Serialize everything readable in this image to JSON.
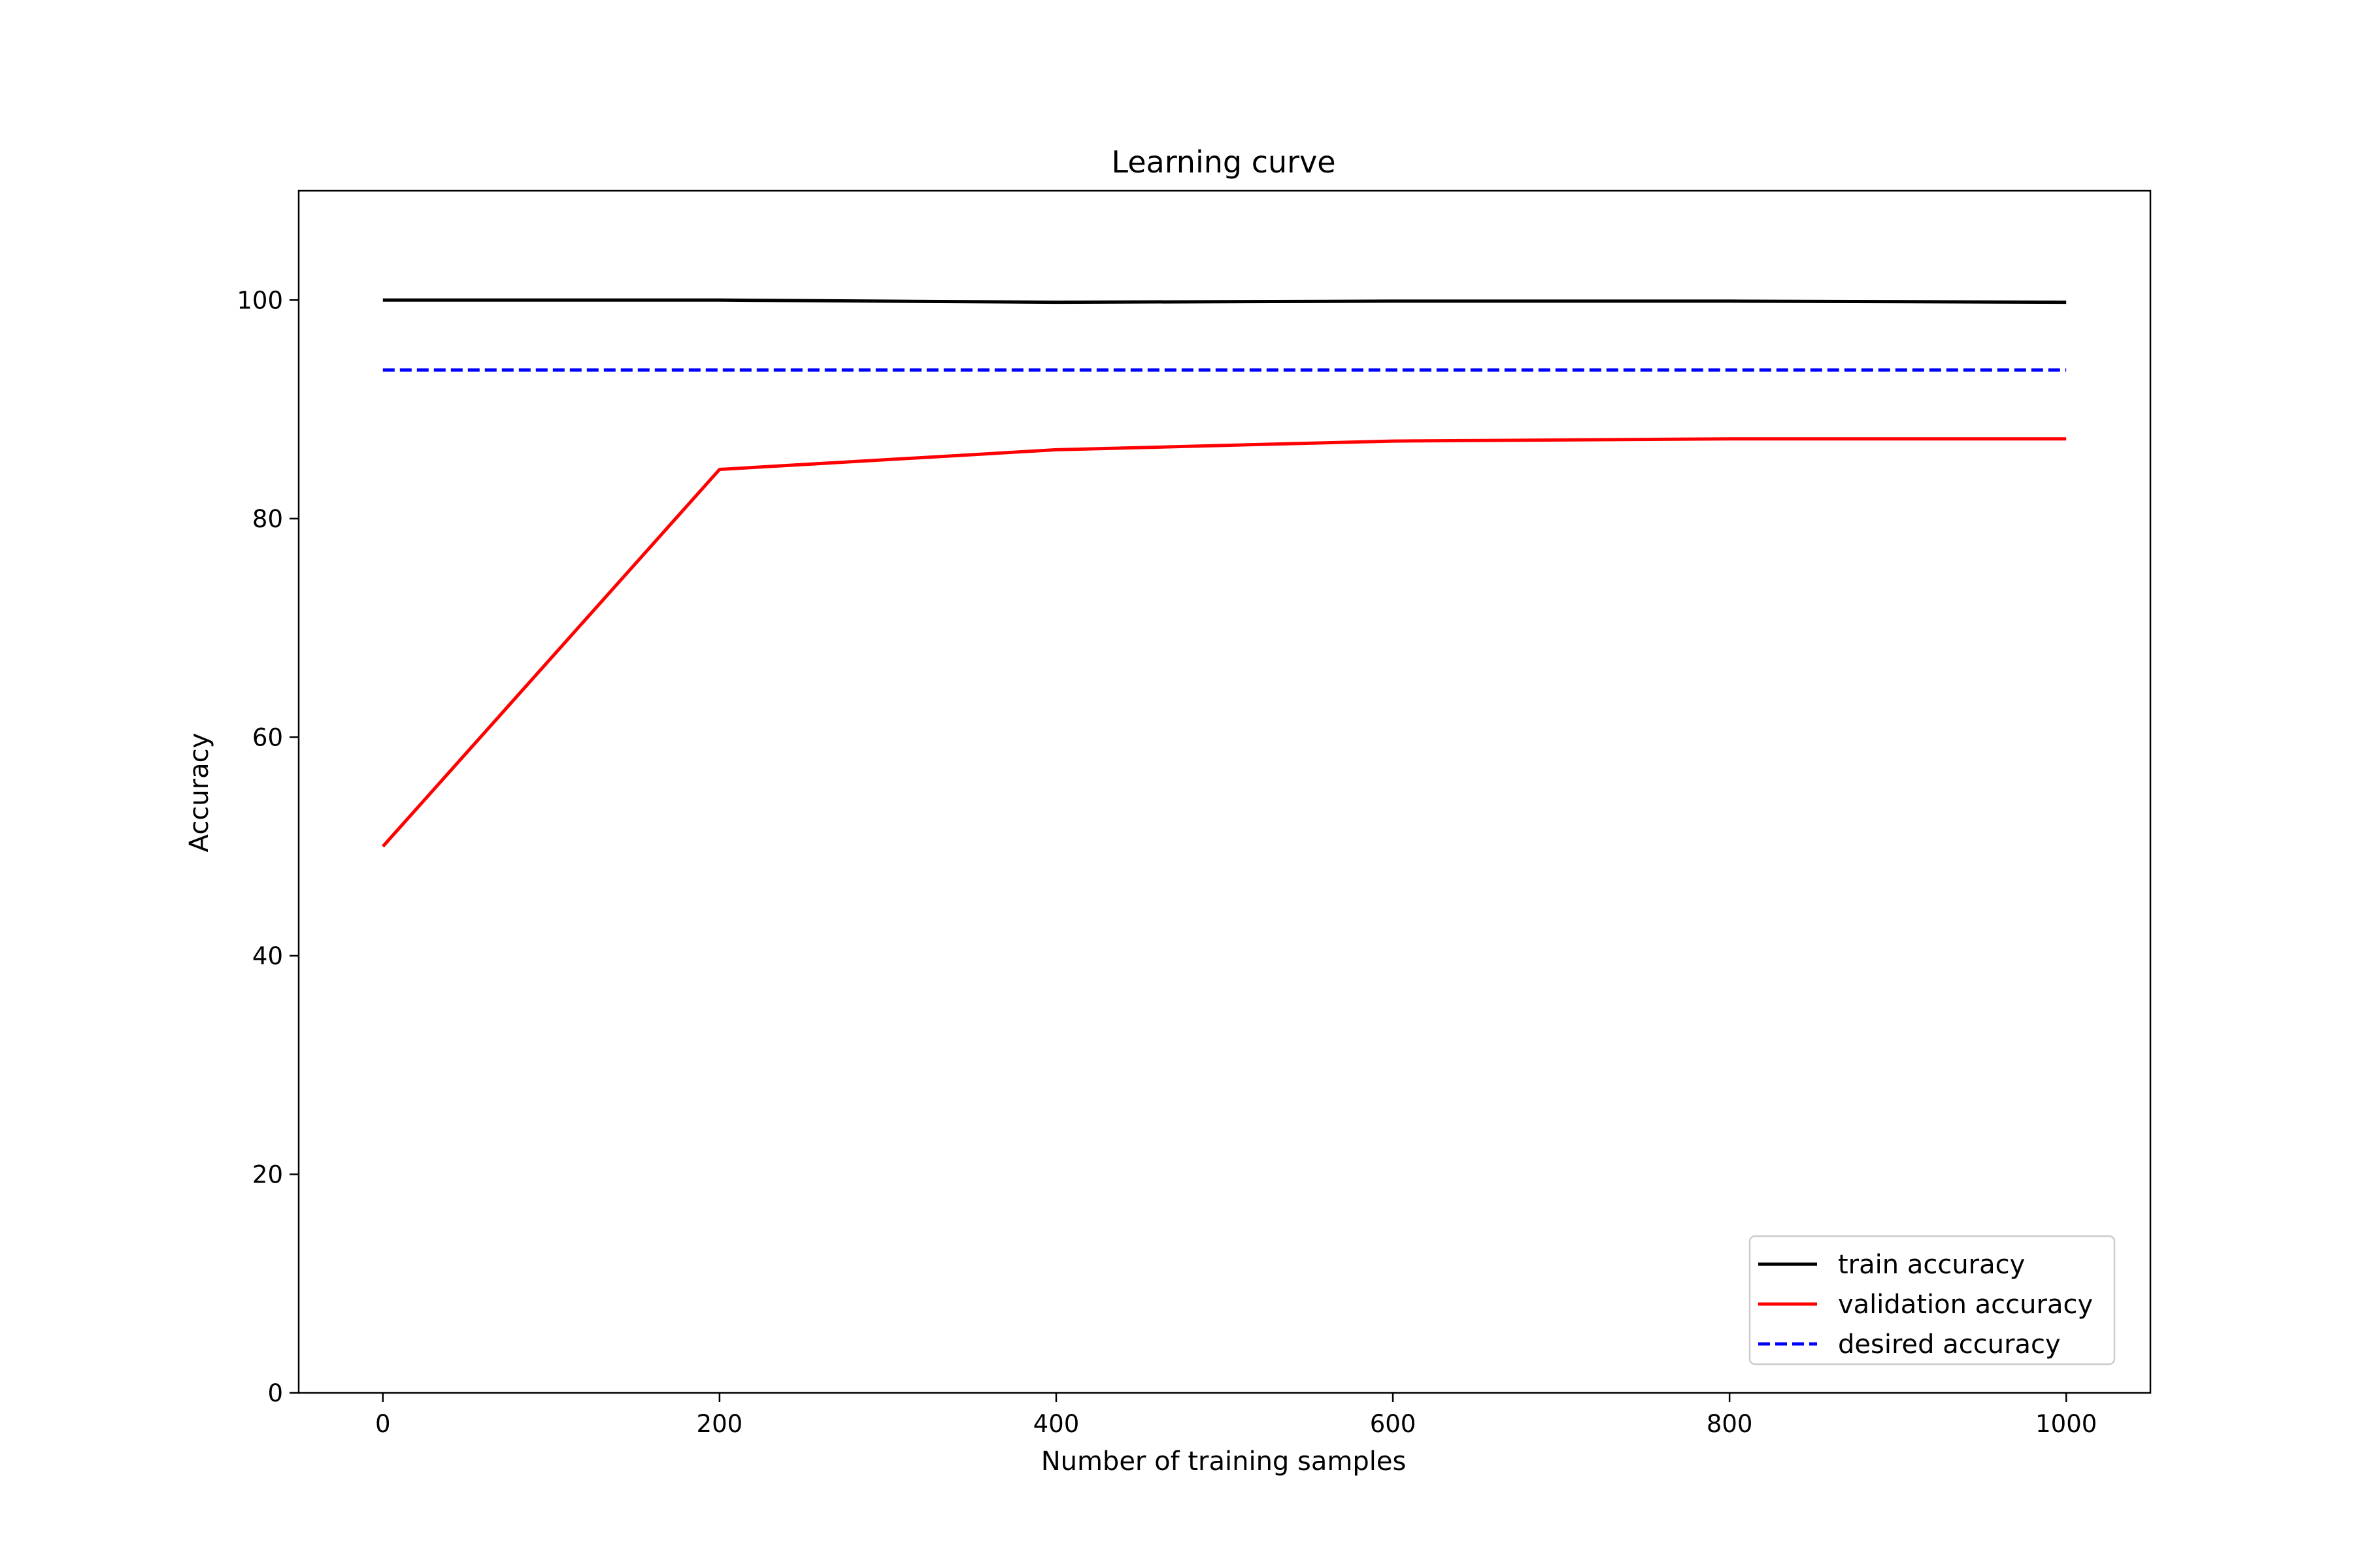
{
  "chart_data": {
    "type": "line",
    "title": "Learning curve",
    "xlabel": "Number of training samples",
    "ylabel": "Accuracy",
    "xlim": [
      -50,
      1050
    ],
    "ylim": [
      0,
      110
    ],
    "xticks": [
      0,
      200,
      400,
      600,
      800,
      1000
    ],
    "yticks": [
      0,
      20,
      40,
      60,
      80,
      100
    ],
    "x": [
      0,
      200,
      400,
      600,
      800,
      1000
    ],
    "series": [
      {
        "name": "train accuracy",
        "values": [
          100.0,
          100.0,
          99.8,
          99.9,
          99.9,
          99.8
        ],
        "color": "#000000",
        "style": "solid"
      },
      {
        "name": "validation accuracy",
        "values": [
          50.0,
          84.5,
          86.3,
          87.1,
          87.3,
          87.3
        ],
        "color": "#ff0000",
        "style": "solid"
      },
      {
        "name": "desired accuracy",
        "values": [
          93.6,
          93.6,
          93.6,
          93.6,
          93.6,
          93.6
        ],
        "color": "#0000ff",
        "style": "dashed"
      }
    ],
    "grid": false,
    "legend_position": "lower-right"
  }
}
